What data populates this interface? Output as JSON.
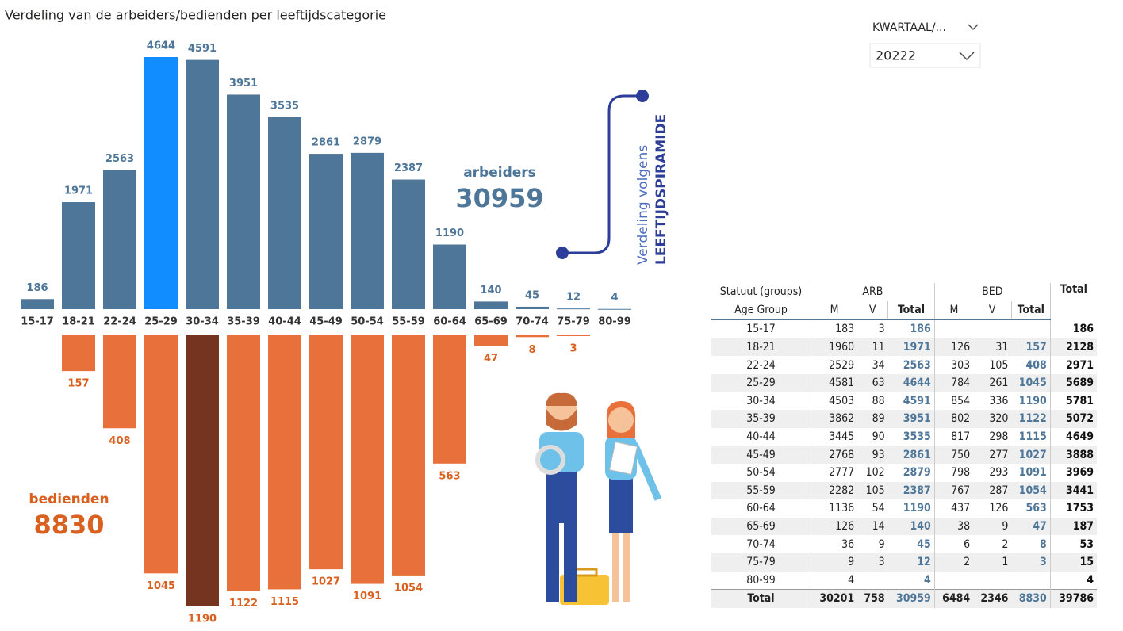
{
  "title": "Verdeling van de arbeiders/bedienden per leeftijdscategorie",
  "filter": {
    "label": "KWARTAAL/...",
    "value": "20222"
  },
  "logo": {
    "line1": "Verdeling volgens",
    "line2": "LEEFTIJDSPIRAMIDE"
  },
  "chart_data": {
    "type": "bar",
    "categories": [
      "15-17",
      "18-21",
      "22-24",
      "25-29",
      "30-34",
      "35-39",
      "40-44",
      "45-49",
      "50-54",
      "55-59",
      "60-64",
      "65-69",
      "70-74",
      "75-79",
      "80-99"
    ],
    "series": [
      {
        "name": "arbeiders",
        "total": 30959,
        "color": "#4e7698",
        "colors": [
          "#4e7698",
          "#4e7698",
          "#4e7698",
          "#118dff",
          "#4e7698",
          "#4e7698",
          "#4e7698",
          "#4e7698",
          "#4e7698",
          "#4e7698",
          "#4e7698",
          "#4e7698",
          "#4e7698",
          "#4e7698",
          "#4e7698"
        ],
        "values": [
          186,
          1971,
          2563,
          4644,
          4591,
          3951,
          3535,
          2861,
          2879,
          2387,
          1190,
          140,
          45,
          12,
          4
        ]
      },
      {
        "name": "bedienden",
        "total": 8830,
        "color": "#d9601f",
        "colors": [
          "#e8703a",
          "#e8703a",
          "#e8703a",
          "#e8703a",
          "#74341f",
          "#e8703a",
          "#e8703a",
          "#e8703a",
          "#e8703a",
          "#e8703a",
          "#e8703a",
          "#e8703a",
          "#e8703a",
          "#e8703a",
          "#e8703a"
        ],
        "values": [
          null,
          157,
          408,
          1045,
          1190,
          1122,
          1115,
          1027,
          1091,
          1054,
          563,
          47,
          8,
          3,
          null
        ]
      }
    ]
  },
  "table": {
    "group_label": "Statuut (groups)",
    "row_label": "Age Group",
    "grand_total": "Total",
    "groups": [
      {
        "name": "ARB",
        "columns": [
          "M",
          "V",
          "Total"
        ]
      },
      {
        "name": "BED",
        "columns": [
          "M",
          "V",
          "Total"
        ]
      }
    ],
    "rows": [
      {
        "label": "15-17",
        "cells": [
          183,
          3,
          186,
          null,
          null,
          null,
          186
        ]
      },
      {
        "label": "18-21",
        "cells": [
          1960,
          11,
          1971,
          126,
          31,
          157,
          2128
        ]
      },
      {
        "label": "22-24",
        "cells": [
          2529,
          34,
          2563,
          303,
          105,
          408,
          2971
        ]
      },
      {
        "label": "25-29",
        "cells": [
          4581,
          63,
          4644,
          784,
          261,
          1045,
          5689
        ]
      },
      {
        "label": "30-34",
        "cells": [
          4503,
          88,
          4591,
          854,
          336,
          1190,
          5781
        ]
      },
      {
        "label": "35-39",
        "cells": [
          3862,
          89,
          3951,
          802,
          320,
          1122,
          5072
        ]
      },
      {
        "label": "40-44",
        "cells": [
          3445,
          90,
          3535,
          817,
          298,
          1115,
          4649
        ]
      },
      {
        "label": "45-49",
        "cells": [
          2768,
          93,
          2861,
          750,
          277,
          1027,
          3888
        ]
      },
      {
        "label": "50-54",
        "cells": [
          2777,
          102,
          2879,
          798,
          293,
          1091,
          3969
        ]
      },
      {
        "label": "55-59",
        "cells": [
          2282,
          105,
          2387,
          767,
          287,
          1054,
          3441
        ]
      },
      {
        "label": "60-64",
        "cells": [
          1136,
          54,
          1190,
          437,
          126,
          563,
          1753
        ]
      },
      {
        "label": "65-69",
        "cells": [
          126,
          14,
          140,
          38,
          9,
          47,
          187
        ]
      },
      {
        "label": "70-74",
        "cells": [
          36,
          9,
          45,
          6,
          2,
          8,
          53
        ]
      },
      {
        "label": "75-79",
        "cells": [
          9,
          3,
          12,
          2,
          1,
          3,
          15
        ]
      },
      {
        "label": "80-99",
        "cells": [
          4,
          null,
          4,
          null,
          null,
          null,
          4
        ]
      }
    ],
    "total_row": {
      "label": "Total",
      "cells": [
        30201,
        758,
        30959,
        6484,
        2346,
        8830,
        39786
      ]
    }
  }
}
